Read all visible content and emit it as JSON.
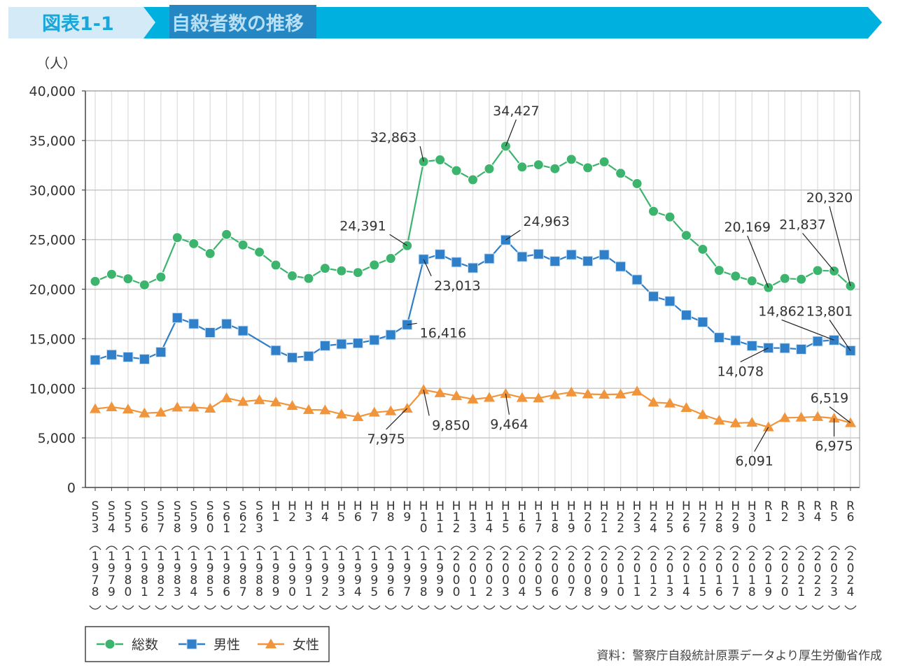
{
  "header": {
    "figure_number": "図表1-1",
    "title": "自殺者数の推移",
    "colors": {
      "left_bg": "#d4eaf6",
      "right_bg": "#00b1e0",
      "highlight": "#2586c4",
      "number_text": "#1aa6d8",
      "title_text": "#b8dff2"
    }
  },
  "source": "資料：警察庁自殺統計原票データより厚生労働省作成",
  "chart_data": {
    "type": "line",
    "title": "自殺者数の推移",
    "ylabel": "（人）",
    "xlabel": "",
    "ylim": [
      0,
      40000
    ],
    "yticks": [
      0,
      5000,
      10000,
      15000,
      20000,
      25000,
      30000,
      35000,
      40000
    ],
    "ytick_labels": [
      "0",
      "5,000",
      "10,000",
      "15,000",
      "20,000",
      "25,000",
      "30,000",
      "35,000",
      "40,000"
    ],
    "grid": true,
    "legend_position": "bottom-left",
    "categories": [
      {
        "era": "S53",
        "year": "1978"
      },
      {
        "era": "S54",
        "year": "1979"
      },
      {
        "era": "S55",
        "year": "1980"
      },
      {
        "era": "S56",
        "year": "1981"
      },
      {
        "era": "S57",
        "year": "1982"
      },
      {
        "era": "S58",
        "year": "1983"
      },
      {
        "era": "S59",
        "year": "1984"
      },
      {
        "era": "S60",
        "year": "1985"
      },
      {
        "era": "S61",
        "year": "1986"
      },
      {
        "era": "S62",
        "year": "1987"
      },
      {
        "era": "S63",
        "year": "1988"
      },
      {
        "era": "H1",
        "year": "1989"
      },
      {
        "era": "H2",
        "year": "1990"
      },
      {
        "era": "H3",
        "year": "1991"
      },
      {
        "era": "H4",
        "year": "1992"
      },
      {
        "era": "H5",
        "year": "1993"
      },
      {
        "era": "H6",
        "year": "1994"
      },
      {
        "era": "H7",
        "year": "1995"
      },
      {
        "era": "H8",
        "year": "1996"
      },
      {
        "era": "H9",
        "year": "1997"
      },
      {
        "era": "H10",
        "year": "1998"
      },
      {
        "era": "H11",
        "year": "1999"
      },
      {
        "era": "H12",
        "year": "2000"
      },
      {
        "era": "H13",
        "year": "2001"
      },
      {
        "era": "H14",
        "year": "2002"
      },
      {
        "era": "H15",
        "year": "2003"
      },
      {
        "era": "H16",
        "year": "2004"
      },
      {
        "era": "H17",
        "year": "2005"
      },
      {
        "era": "H18",
        "year": "2006"
      },
      {
        "era": "H19",
        "year": "2007"
      },
      {
        "era": "H20",
        "year": "2008"
      },
      {
        "era": "H21",
        "year": "2009"
      },
      {
        "era": "H22",
        "year": "2010"
      },
      {
        "era": "H23",
        "year": "2011"
      },
      {
        "era": "H24",
        "year": "2012"
      },
      {
        "era": "H25",
        "year": "2013"
      },
      {
        "era": "H26",
        "year": "2014"
      },
      {
        "era": "H27",
        "year": "2015"
      },
      {
        "era": "H28",
        "year": "2016"
      },
      {
        "era": "H29",
        "year": "2017"
      },
      {
        "era": "H30",
        "year": "2018"
      },
      {
        "era": "R1",
        "year": "2019"
      },
      {
        "era": "R2",
        "year": "2020"
      },
      {
        "era": "R3",
        "year": "2021"
      },
      {
        "era": "R4",
        "year": "2022"
      },
      {
        "era": "R5",
        "year": "2023"
      },
      {
        "era": "R6",
        "year": "2024"
      }
    ],
    "series": [
      {
        "name": "総数",
        "color": "#3cb46e",
        "marker": "circle",
        "values": [
          20788,
          21503,
          21048,
          20434,
          21228,
          25202,
          24596,
          23599,
          25524,
          24460,
          23742,
          22436,
          21346,
          21084,
          22104,
          21851,
          21679,
          22445,
          23104,
          24391,
          32863,
          33048,
          31957,
          31042,
          32143,
          34427,
          32325,
          32552,
          32155,
          33093,
          32249,
          32845,
          31690,
          30651,
          27858,
          27283,
          25427,
          24025,
          21897,
          21321,
          20840,
          20169,
          21081,
          21007,
          21881,
          21837,
          20320
        ]
      },
      {
        "name": "男性",
        "color": "#2f7fc9",
        "marker": "square",
        "values": [
          12859,
          13386,
          13155,
          12942,
          13654,
          17116,
          16508,
          15624,
          16497,
          15802,
          null,
          13818,
          13102,
          13242,
          14296,
          14468,
          14560,
          14874,
          15393,
          16416,
          23013,
          23512,
          22727,
          22144,
          23080,
          24963,
          23272,
          23540,
          22813,
          23478,
          22831,
          23472,
          22283,
          20955,
          19273,
          18787,
          17386,
          16681,
          15121,
          14826,
          14290,
          14078,
          14055,
          13939,
          14746,
          14862,
          13801
        ]
      },
      {
        "name": "女性",
        "color": "#f0953c",
        "marker": "triangle",
        "values": [
          7929,
          8117,
          7893,
          7492,
          7574,
          8086,
          8088,
          7975,
          9027,
          8658,
          8826,
          8618,
          8244,
          7842,
          7808,
          7383,
          7119,
          7571,
          7711,
          7975,
          9850,
          9536,
          9230,
          8898,
          9063,
          9464,
          9053,
          9012,
          9342,
          9615,
          9418,
          9373,
          9407,
          9696,
          8585,
          8496,
          8041,
          7344,
          6776,
          6495,
          6550,
          6091,
          7026,
          7068,
          7135,
          6975,
          6519
        ]
      }
    ],
    "annotations": [
      {
        "series": 0,
        "index": 19,
        "text": "24,391"
      },
      {
        "series": 0,
        "index": 20,
        "text": "32,863"
      },
      {
        "series": 0,
        "index": 25,
        "text": "34,427"
      },
      {
        "series": 0,
        "index": 41,
        "text": "20,169"
      },
      {
        "series": 0,
        "index": 45,
        "text": "21,837"
      },
      {
        "series": 0,
        "index": 46,
        "text": "20,320"
      },
      {
        "series": 1,
        "index": 19,
        "text": "16,416"
      },
      {
        "series": 1,
        "index": 20,
        "text": "23,013"
      },
      {
        "series": 1,
        "index": 25,
        "text": "24,963"
      },
      {
        "series": 1,
        "index": 41,
        "text": "14,078"
      },
      {
        "series": 1,
        "index": 45,
        "text": "14,862"
      },
      {
        "series": 1,
        "index": 46,
        "text": "13,801"
      },
      {
        "series": 2,
        "index": 19,
        "text": "7,975"
      },
      {
        "series": 2,
        "index": 20,
        "text": "9,850"
      },
      {
        "series": 2,
        "index": 25,
        "text": "9,464"
      },
      {
        "series": 2,
        "index": 41,
        "text": "6,091"
      },
      {
        "series": 2,
        "index": 45,
        "text": "6,975"
      },
      {
        "series": 2,
        "index": 46,
        "text": "6,519"
      }
    ]
  }
}
